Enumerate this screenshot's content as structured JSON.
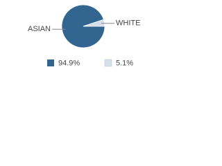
{
  "chart_data": {
    "type": "pie",
    "categories": [
      "ASIAN",
      "WHITE"
    ],
    "values": [
      94.9,
      5.1
    ],
    "value_labels": [
      "94.9%",
      "5.1%"
    ],
    "colors": [
      "#336591",
      "#d5dfe9"
    ]
  }
}
